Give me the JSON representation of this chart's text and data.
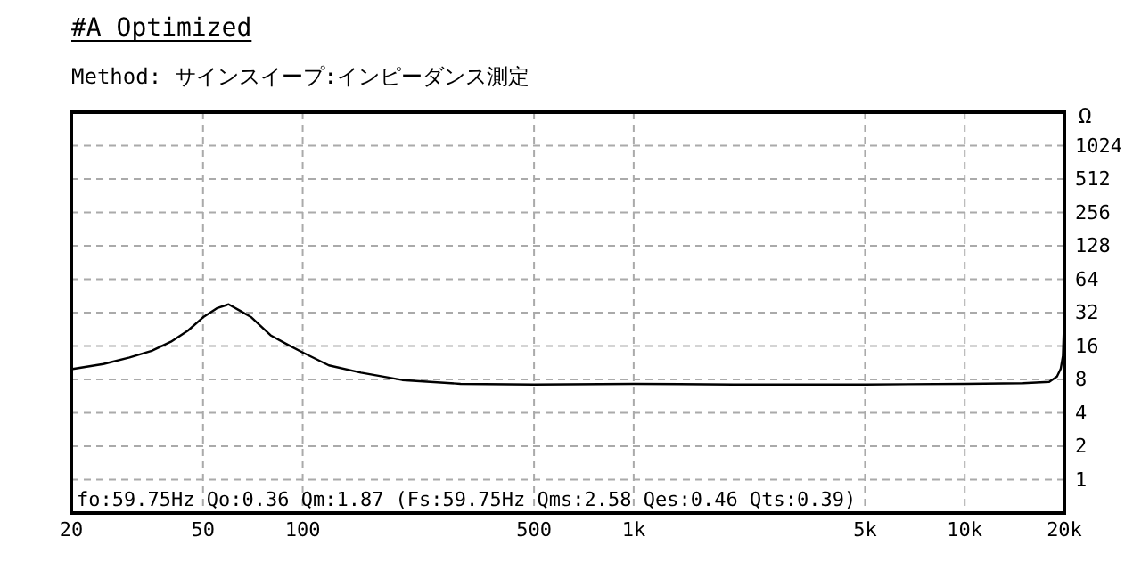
{
  "chart_data": {
    "type": "line",
    "title": "#A  Optimized",
    "subtitle": "Method:  サインスイープ:インピーダンス測定",
    "ylabel": "Ω",
    "x": [
      20,
      25,
      30,
      35,
      40,
      45,
      50,
      55,
      59.75,
      65,
      70,
      80,
      90,
      100,
      120,
      150,
      200,
      300,
      500,
      1000,
      2000,
      5000,
      10000,
      15000,
      18000,
      19000,
      19500,
      19800,
      20000
    ],
    "series": [
      {
        "color": "#000000",
        "values": [
          9.9,
          11,
          12.6,
          14.5,
          17.5,
          22,
          29,
          35,
          38,
          33,
          29,
          20,
          16.5,
          14,
          10.7,
          9.2,
          7.9,
          7.3,
          7.2,
          7.3,
          7.2,
          7.2,
          7.3,
          7.4,
          7.6,
          8.5,
          10,
          13,
          32
        ]
      }
    ],
    "log": "xy",
    "xlim": [
      20,
      20000
    ],
    "xticks": [
      20,
      50,
      100,
      500,
      {
        "value": 1000,
        "label": "1k"
      },
      {
        "value": 5000,
        "label": "5k"
      },
      {
        "value": 10000,
        "label": "10k"
      },
      {
        "value": 20000,
        "label": "20k"
      }
    ],
    "ylim": [
      0.5,
      2048
    ],
    "yticks": [
      1,
      2,
      4,
      8,
      16,
      32,
      64,
      128,
      256,
      512,
      1024
    ],
    "grid": true,
    "line_style": "solid",
    "marker": "none",
    "annotations": [
      "fo:59.75Hz  Qo:0.36 Qm:1.87  (Fs:59.75Hz  Qms:2.58 Qes:0.46 Qts:0.39)"
    ]
  }
}
